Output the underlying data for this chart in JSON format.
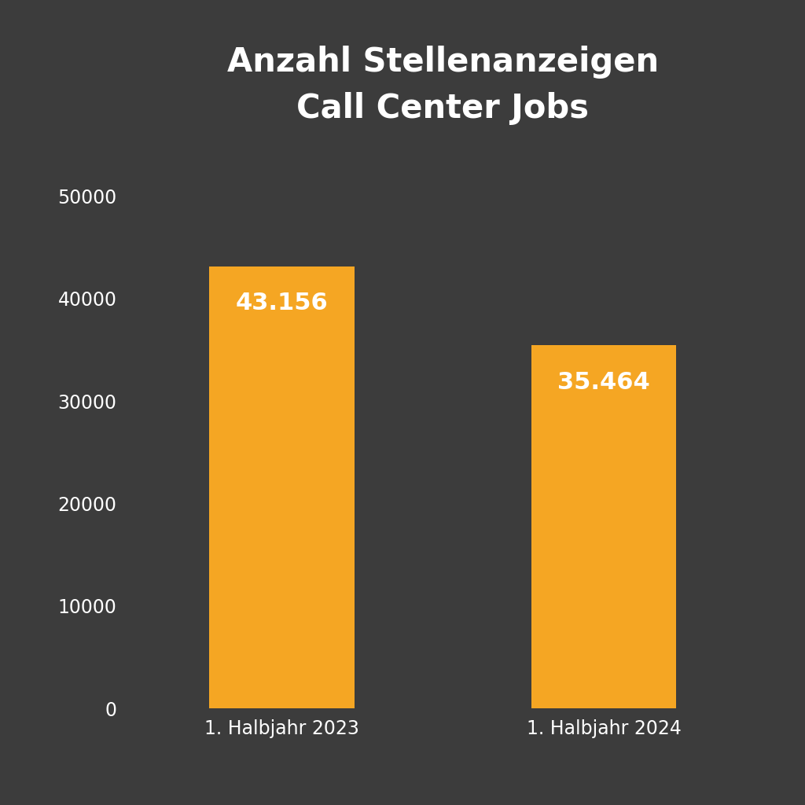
{
  "title": "Anzahl Stellenanzeigen\nCall Center Jobs",
  "categories": [
    "1. Halbjahr 2023",
    "1. Halbjahr 2024"
  ],
  "values": [
    43156,
    35464
  ],
  "labels": [
    "43.156",
    "35.464"
  ],
  "bar_color": "#F5A623",
  "background_color": "#3C3C3C",
  "text_color": "#FFFFFF",
  "tick_color": "#FFFFFF",
  "title_fontsize": 30,
  "label_fontsize": 22,
  "tick_fontsize": 17,
  "xtick_fontsize": 17,
  "ylim": [
    0,
    55000
  ],
  "yticks": [
    0,
    10000,
    20000,
    30000,
    40000,
    50000
  ]
}
